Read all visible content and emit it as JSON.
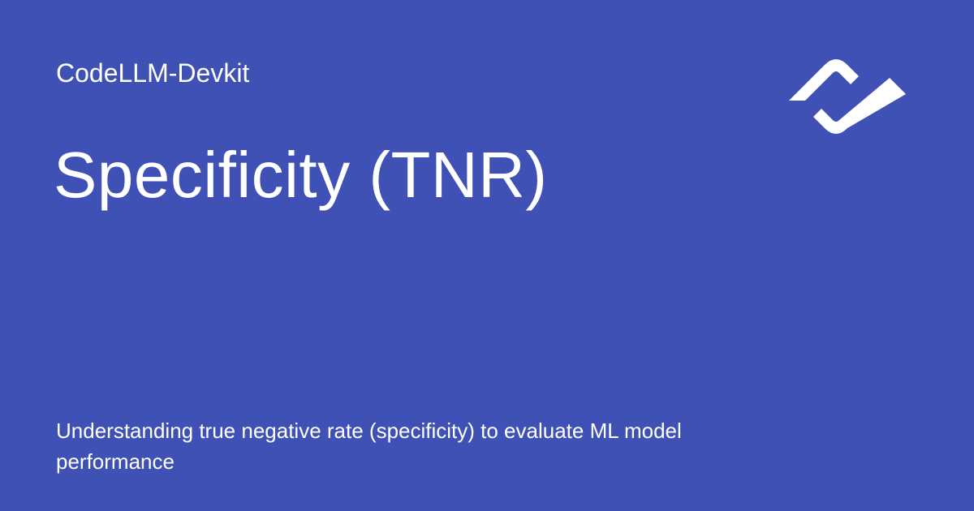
{
  "theme": {
    "background": "#3f51b5",
    "foreground": "#ffffff"
  },
  "header": {
    "site_name": "CodeLLM-Devkit",
    "logo_icon": "devkit-logo-icon"
  },
  "main": {
    "title": "Specificity (TNR)",
    "description": "Understanding true negative rate (specificity) to evaluate ML model performance"
  }
}
